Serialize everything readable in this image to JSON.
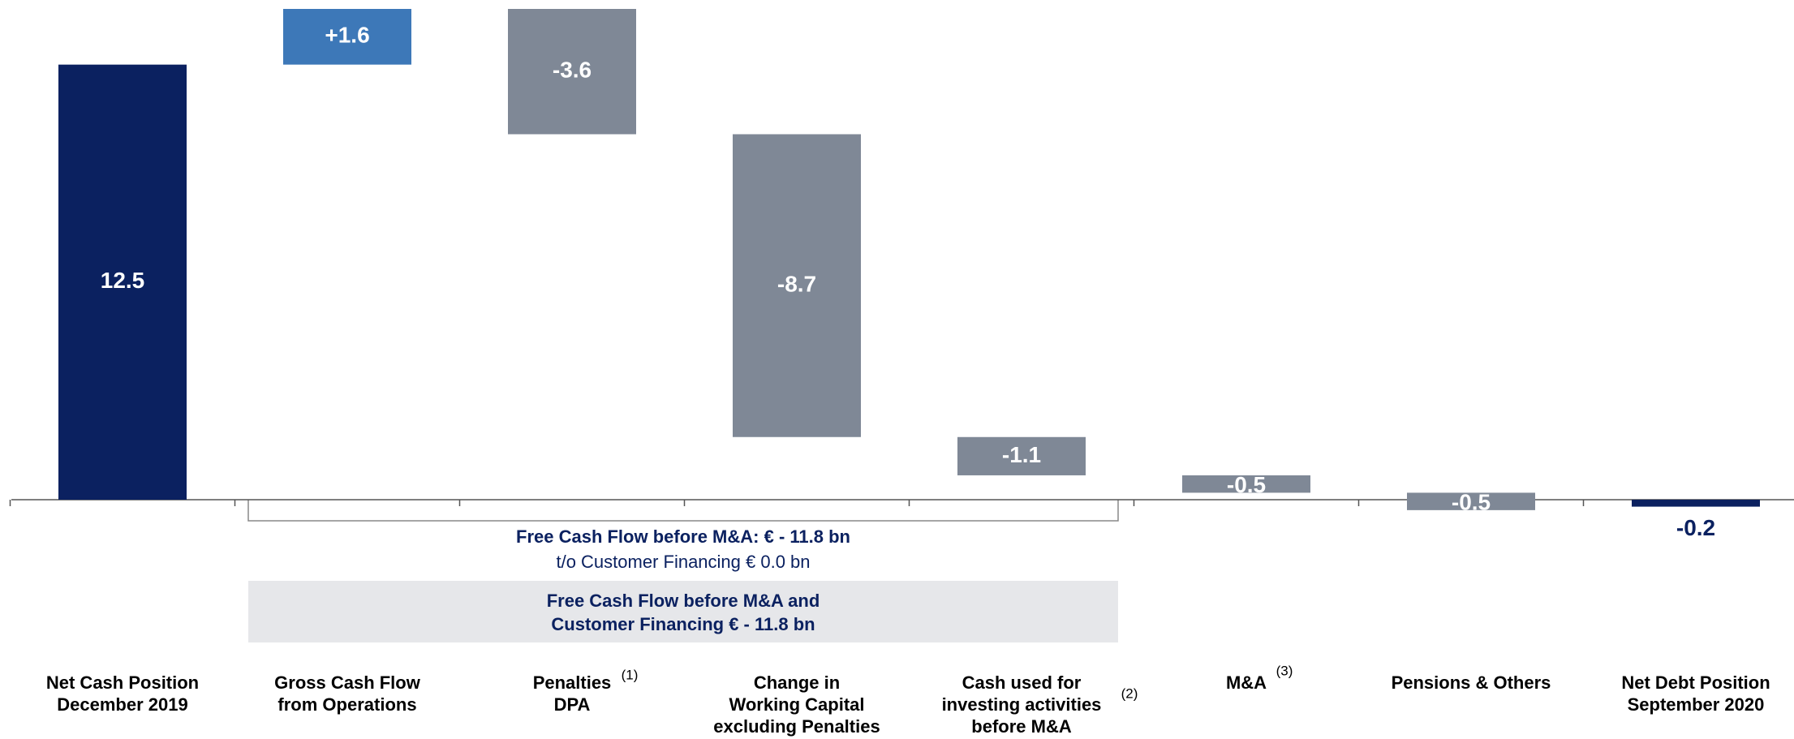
{
  "chart_data": {
    "type": "waterfall",
    "categories": [
      "Net Cash Position\nDecember 2019",
      "Gross Cash Flow\nfrom Operations",
      "Penalties\nDPA",
      "Change in\nWorking Capital\nexcluding Penalties",
      "Cash used for\ninvesting activities\nbefore M&A",
      "M&A",
      "Pensions & Others",
      "Net Debt Position\nSeptember 2020"
    ],
    "values": [
      12.5,
      1.6,
      -3.6,
      -8.7,
      -1.1,
      -0.5,
      -0.5,
      -0.2
    ],
    "value_labels": [
      "12.5",
      "+1.6",
      "-3.6",
      "-8.7",
      "-1.1",
      "-0.5",
      "-0.5",
      "-0.2"
    ],
    "colors": [
      "#0b2160",
      "#3d78b8",
      "#7f8896",
      "#7f8896",
      "#7f8896",
      "#7f8896",
      "#7f8896",
      "#0b2160"
    ],
    "footnotes": [
      "(1)",
      "(2)",
      "(3)"
    ],
    "annotations": [
      "Free Cash Flow before M&A: € - 11.8 bn",
      "t/o Customer Financing € 0.0 bn",
      "Free Cash Flow before M&A and",
      "Customer Financing € - 11.8 bn"
    ]
  }
}
